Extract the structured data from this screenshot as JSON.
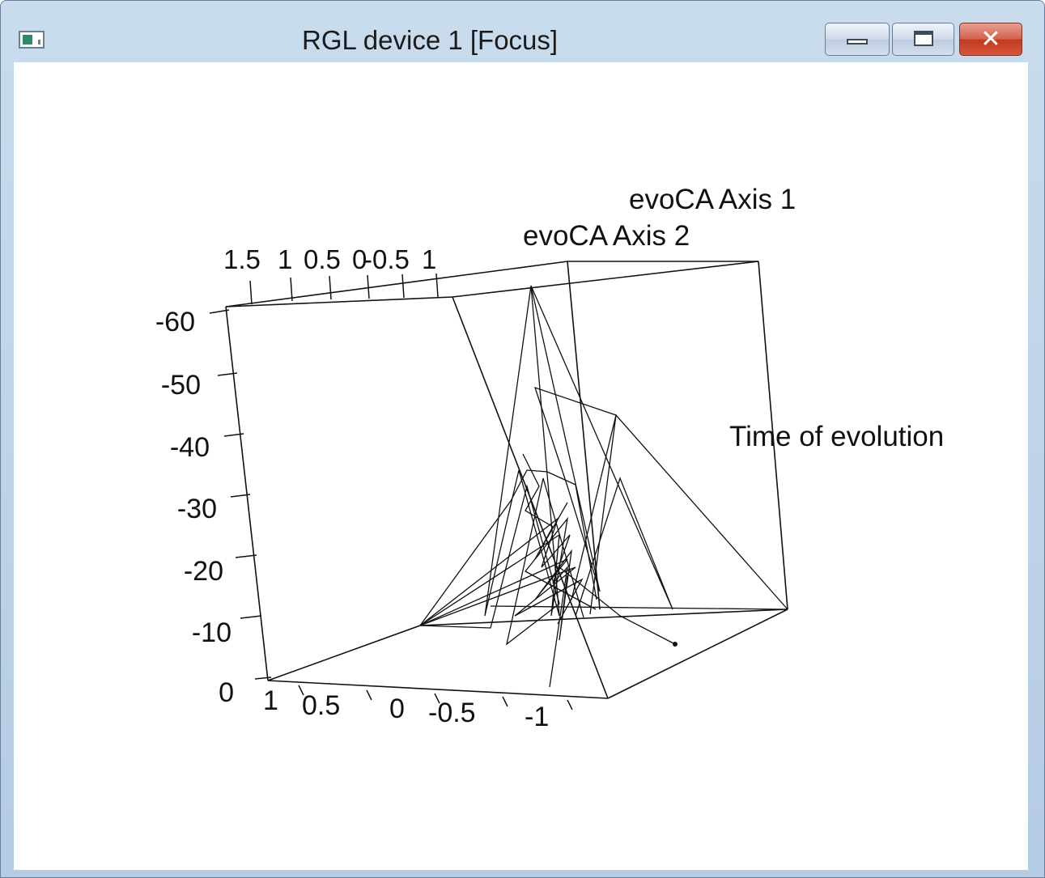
{
  "window": {
    "title": "RGL device 1 [Focus]",
    "icon": "rgl-app-icon",
    "controls": {
      "minimize_icon": "minimize-icon",
      "maximize_icon": "maximize-icon",
      "close_icon": "close-icon",
      "close_glyph": "✕"
    }
  },
  "plot": {
    "axis1_label": "evoCA Axis 1",
    "axis2_label": "evoCA Axis 2",
    "time_label": "Time of evolution",
    "z_ticks": [
      "0",
      "-10",
      "-20",
      "-30",
      "-40",
      "-50",
      "-60"
    ],
    "bottom_ticks": [
      "1",
      "0.5",
      "0",
      "-0.5",
      "-1"
    ],
    "top_ticks": [
      "1.5",
      "1",
      "0.5",
      "0",
      "-0.5",
      "1"
    ]
  },
  "chart_data": {
    "type": "line",
    "series_count_approx": 1,
    "z_range": [
      0,
      -60
    ],
    "axis1_range": [
      1,
      -1
    ],
    "axis2_range": [
      1.5,
      -1
    ],
    "xlabel": "evoCA Axis 1",
    "ylabel": "evoCA Axis 2",
    "zlabel": "Time of evolution"
  }
}
